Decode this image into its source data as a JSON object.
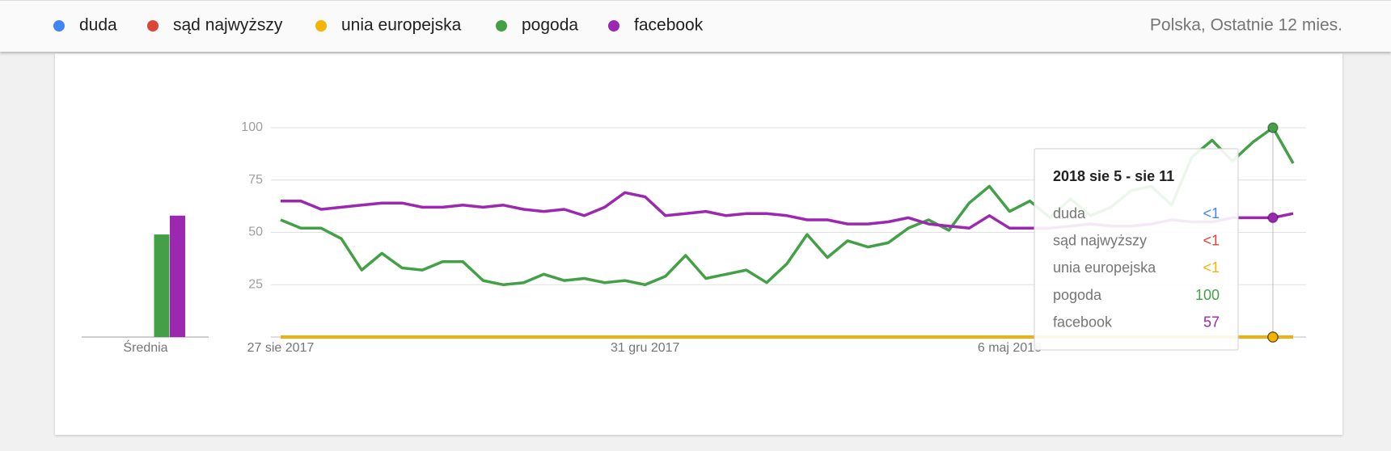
{
  "region_note": "Polska, Ostatnie 12 mies.",
  "chart_data": [
    {
      "type": "line",
      "categories": [
        "27 sie 2017",
        null,
        null,
        null,
        null,
        null,
        null,
        null,
        null,
        null,
        null,
        null,
        null,
        null,
        null,
        null,
        null,
        null,
        "31 gru 2017",
        null,
        null,
        null,
        null,
        null,
        null,
        null,
        null,
        null,
        null,
        null,
        null,
        null,
        null,
        null,
        null,
        null,
        "6 maj 2018",
        null,
        null,
        null,
        null,
        null,
        null,
        null,
        null,
        null,
        null,
        null,
        null,
        null,
        null
      ],
      "series": [
        {
          "name": "duda",
          "color": "#4285f4",
          "values": [
            0,
            0,
            0,
            0,
            0,
            0,
            0,
            0,
            0,
            0,
            0,
            0,
            0,
            0,
            0,
            0,
            0,
            0,
            0,
            0,
            0,
            0,
            0,
            0,
            0,
            0,
            0,
            0,
            0,
            0,
            0,
            0,
            0,
            0,
            0,
            0,
            0,
            0,
            0,
            0,
            0,
            0,
            0,
            0,
            0,
            0,
            0,
            0,
            0,
            0,
            0
          ]
        },
        {
          "name": "sąd najwyższy",
          "color": "#db4437",
          "values": [
            0,
            0,
            0,
            0,
            0,
            0,
            0,
            0,
            0,
            0,
            0,
            0,
            0,
            0,
            0,
            0,
            0,
            0,
            0,
            0,
            0,
            0,
            0,
            0,
            0,
            0,
            0,
            0,
            0,
            0,
            0,
            0,
            0,
            0,
            0,
            0,
            0,
            0,
            0,
            0,
            0,
            0,
            0,
            0,
            0,
            0,
            0,
            0,
            0,
            0,
            0
          ]
        },
        {
          "name": "unia europejska",
          "color": "#f4b400",
          "values": [
            0,
            0,
            0,
            0,
            0,
            0,
            0,
            0,
            0,
            0,
            0,
            0,
            0,
            0,
            0,
            0,
            0,
            0,
            0,
            0,
            0,
            0,
            0,
            0,
            0,
            0,
            0,
            0,
            0,
            0,
            0,
            0,
            0,
            0,
            0,
            0,
            0,
            0,
            0,
            0,
            0,
            0,
            0,
            0,
            0,
            0,
            0,
            0,
            0,
            0,
            0
          ]
        },
        {
          "name": "pogoda",
          "color": "#43a047",
          "values": [
            56,
            52,
            52,
            47,
            32,
            40,
            33,
            32,
            36,
            36,
            27,
            25,
            26,
            30,
            27,
            28,
            26,
            27,
            25,
            29,
            39,
            28,
            30,
            32,
            26,
            35,
            49,
            38,
            46,
            43,
            45,
            52,
            56,
            51,
            64,
            72,
            60,
            65,
            57,
            66,
            58,
            62,
            70,
            72,
            63,
            86,
            94,
            84,
            93,
            100,
            83
          ]
        },
        {
          "name": "facebook",
          "color": "#9c27b0",
          "values": [
            65,
            65,
            61,
            62,
            63,
            64,
            64,
            62,
            62,
            63,
            62,
            63,
            61,
            60,
            61,
            58,
            62,
            69,
            67,
            58,
            59,
            60,
            58,
            59,
            59,
            58,
            56,
            56,
            54,
            54,
            55,
            57,
            54,
            53,
            52,
            58,
            52,
            52,
            52,
            53,
            54,
            53,
            53,
            54,
            56,
            55,
            55,
            57,
            57,
            57,
            59
          ]
        }
      ],
      "ylim": [
        0,
        100
      ],
      "yticks": [
        25,
        50,
        75,
        100
      ],
      "grid": true,
      "tooltip": {
        "title": "2018 sie 5 - sie 11",
        "values": [
          {
            "value": 0,
            "label": "<1"
          },
          {
            "value": 0,
            "label": "<1"
          },
          {
            "value": 0,
            "label": "<1"
          },
          100,
          57
        ]
      }
    },
    {
      "type": "bar",
      "x_label": "Średnia",
      "values": [
        0,
        0,
        0,
        49,
        58
      ],
      "ylim": [
        0,
        100
      ]
    }
  ]
}
